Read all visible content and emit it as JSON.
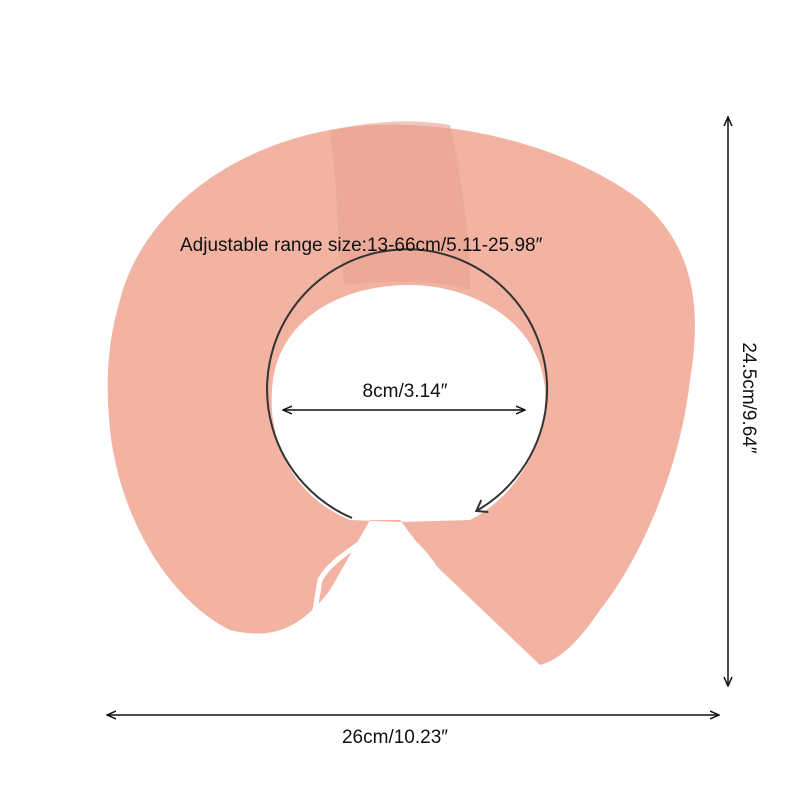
{
  "annotations": {
    "range": "Adjustable range size:13-66cm/5.11-25.98″",
    "inner": "8cm/3.14″",
    "width": "26cm/10.23″",
    "height": "24.5cm/9.64″"
  }
}
